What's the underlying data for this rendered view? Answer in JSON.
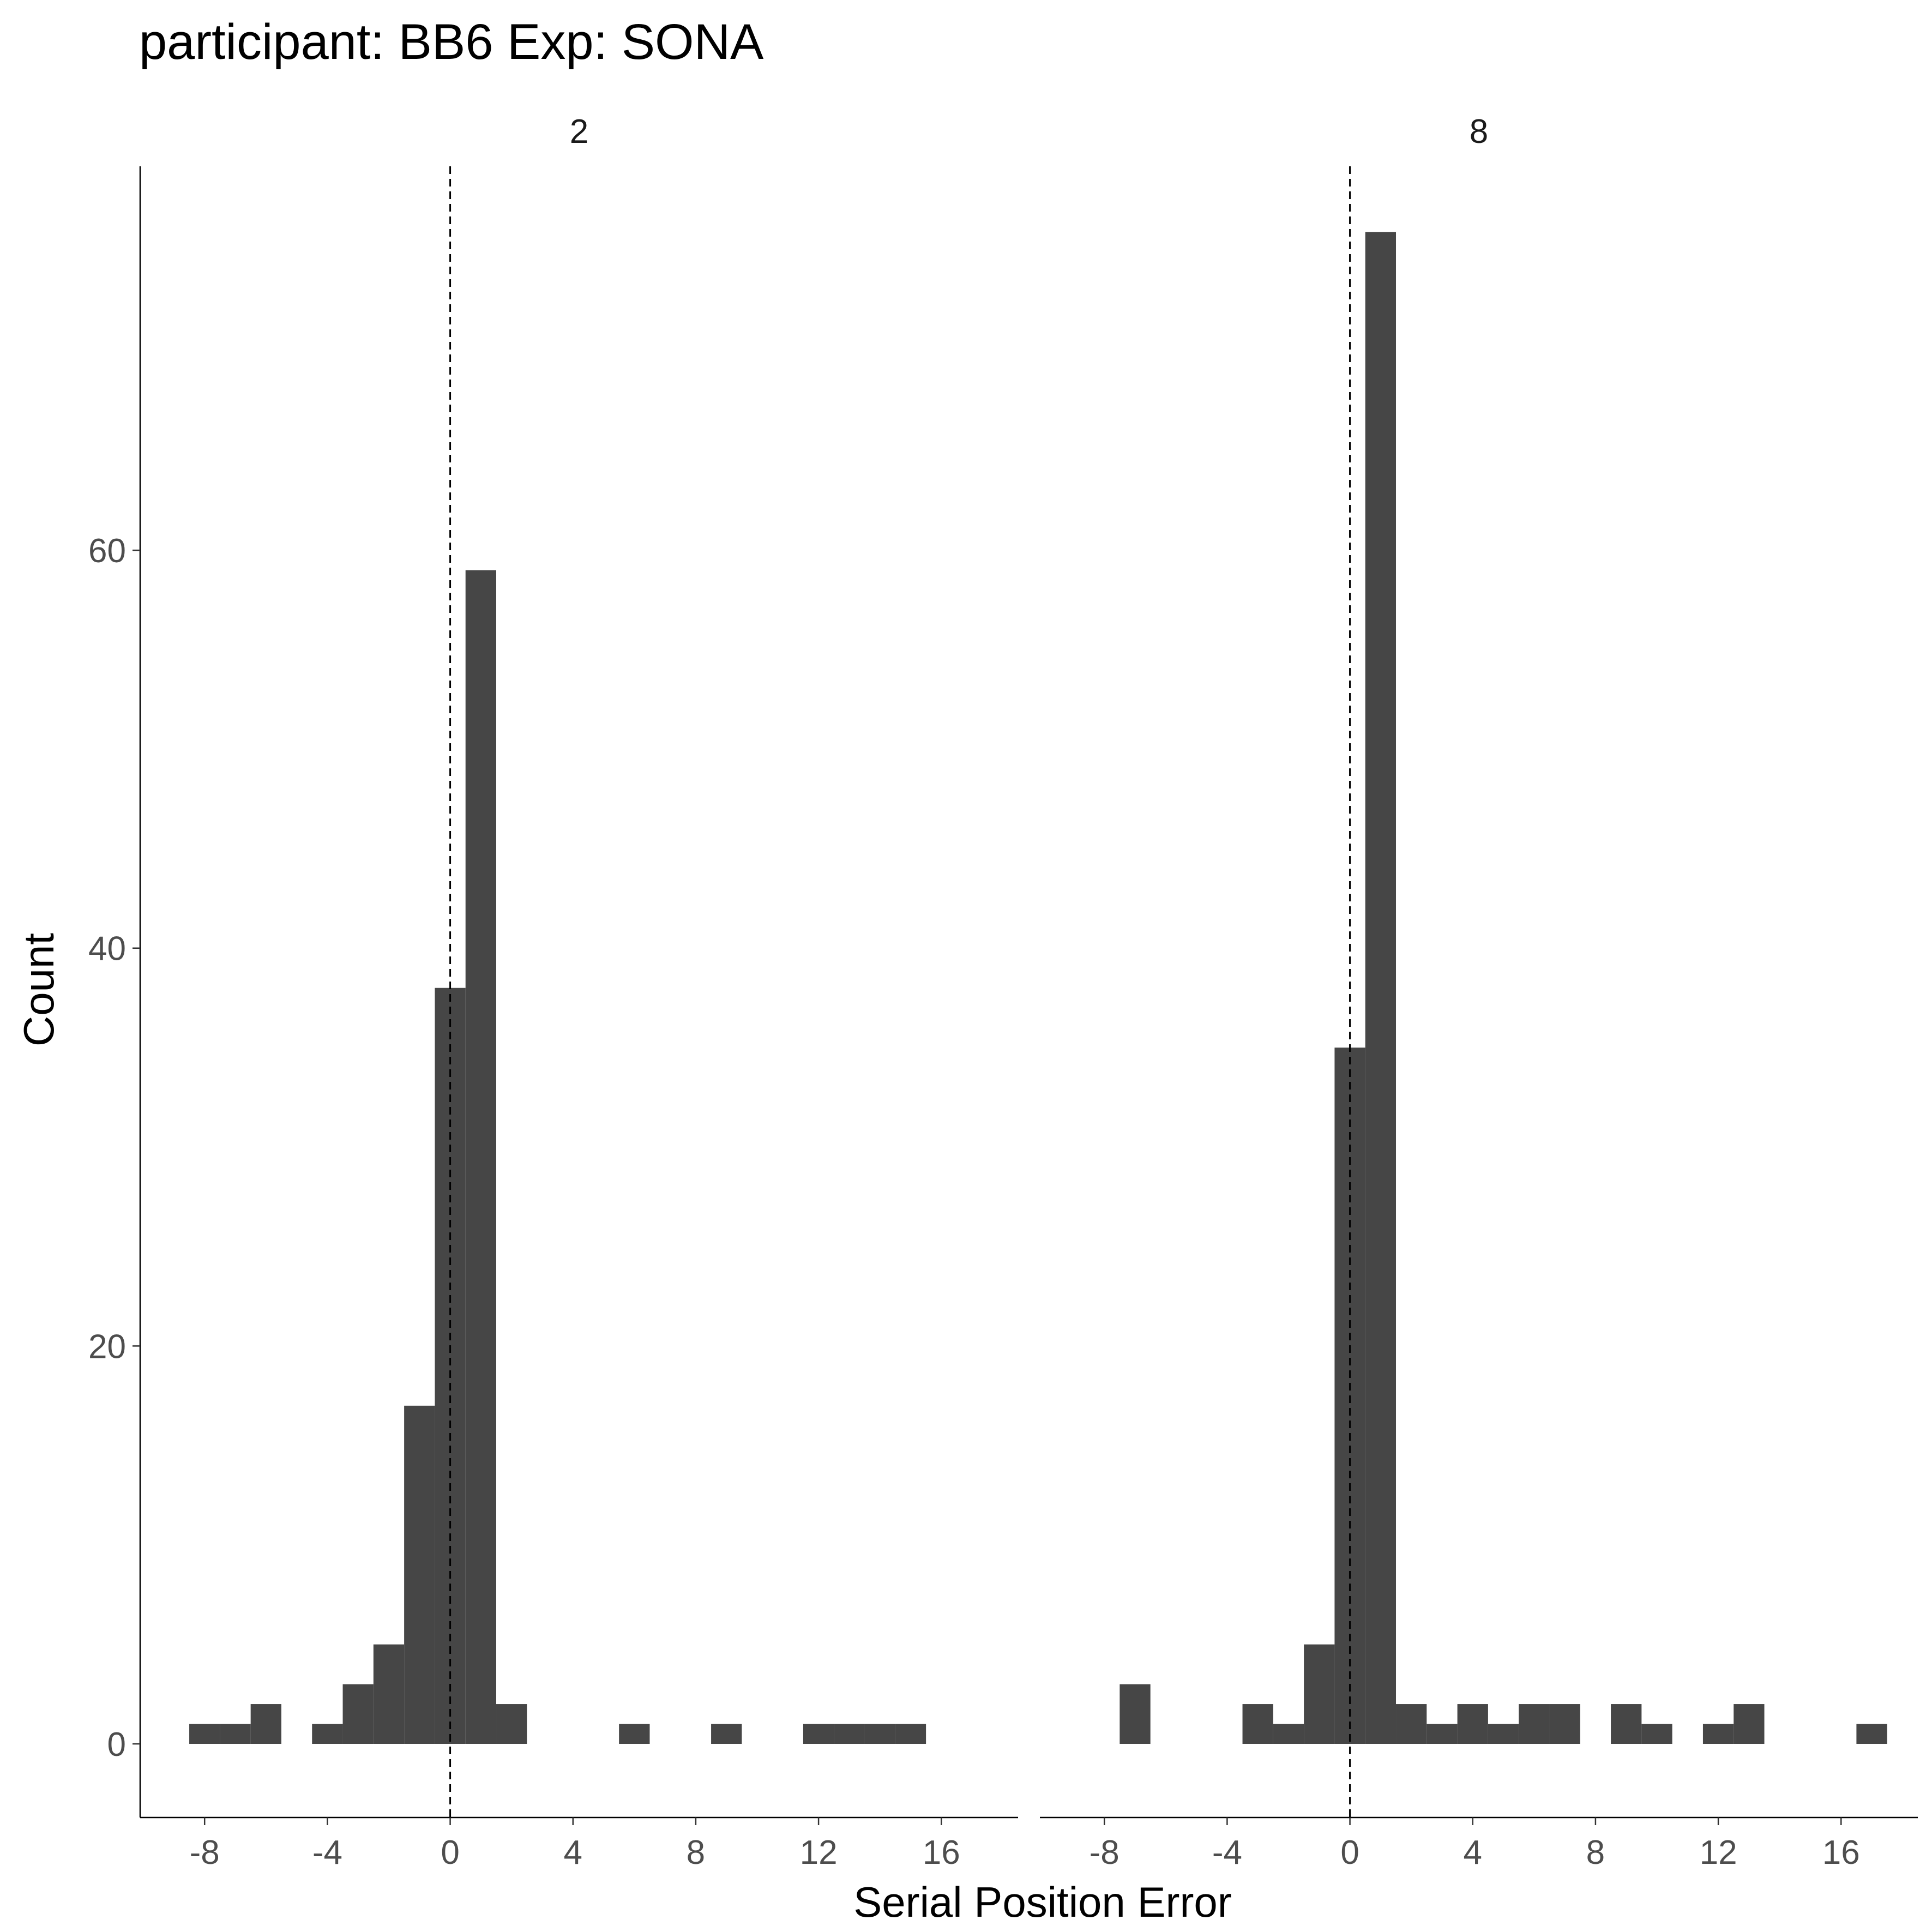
{
  "chart_data": {
    "type": "bar",
    "title": "participant: BB6 Exp: SONA",
    "xlabel": "Serial Position Error",
    "ylabel": "Count",
    "ylim": [
      -3.7,
      79.3
    ],
    "xlim": [
      -10.1,
      18.5
    ],
    "yticks": [
      0,
      20,
      40,
      60
    ],
    "ytick_labels": [
      "0",
      "20",
      "40",
      "60"
    ],
    "xticks": [
      -8,
      -4,
      0,
      4,
      8,
      12,
      16
    ],
    "xtick_labels": [
      "-8",
      "-4",
      "0",
      "4",
      "8",
      "12",
      "16"
    ],
    "bin_width": 1,
    "reference_line_x": 0,
    "grid": false,
    "bar_color": "#464646",
    "panels": [
      {
        "label": "2",
        "bins": [
          {
            "x": -8,
            "count": 1
          },
          {
            "x": -7,
            "count": 1
          },
          {
            "x": -6,
            "count": 2
          },
          {
            "x": -4,
            "count": 1
          },
          {
            "x": -3,
            "count": 3
          },
          {
            "x": -2,
            "count": 5
          },
          {
            "x": -1,
            "count": 17
          },
          {
            "x": 0,
            "count": 38
          },
          {
            "x": 1,
            "count": 59
          },
          {
            "x": 2,
            "count": 2
          },
          {
            "x": 6,
            "count": 1
          },
          {
            "x": 9,
            "count": 1
          },
          {
            "x": 12,
            "count": 1
          },
          {
            "x": 13,
            "count": 1
          },
          {
            "x": 14,
            "count": 1
          },
          {
            "x": 15,
            "count": 1
          }
        ]
      },
      {
        "label": "8",
        "bins": [
          {
            "x": -7,
            "count": 3
          },
          {
            "x": -3,
            "count": 2
          },
          {
            "x": -2,
            "count": 1
          },
          {
            "x": -1,
            "count": 5
          },
          {
            "x": 0,
            "count": 35
          },
          {
            "x": 1,
            "count": 76
          },
          {
            "x": 2,
            "count": 2
          },
          {
            "x": 3,
            "count": 1
          },
          {
            "x": 4,
            "count": 2
          },
          {
            "x": 5,
            "count": 1
          },
          {
            "x": 6,
            "count": 2
          },
          {
            "x": 7,
            "count": 2
          },
          {
            "x": 9,
            "count": 2
          },
          {
            "x": 10,
            "count": 1
          },
          {
            "x": 12,
            "count": 1
          },
          {
            "x": 13,
            "count": 2
          },
          {
            "x": 17,
            "count": 1
          }
        ]
      }
    ]
  }
}
